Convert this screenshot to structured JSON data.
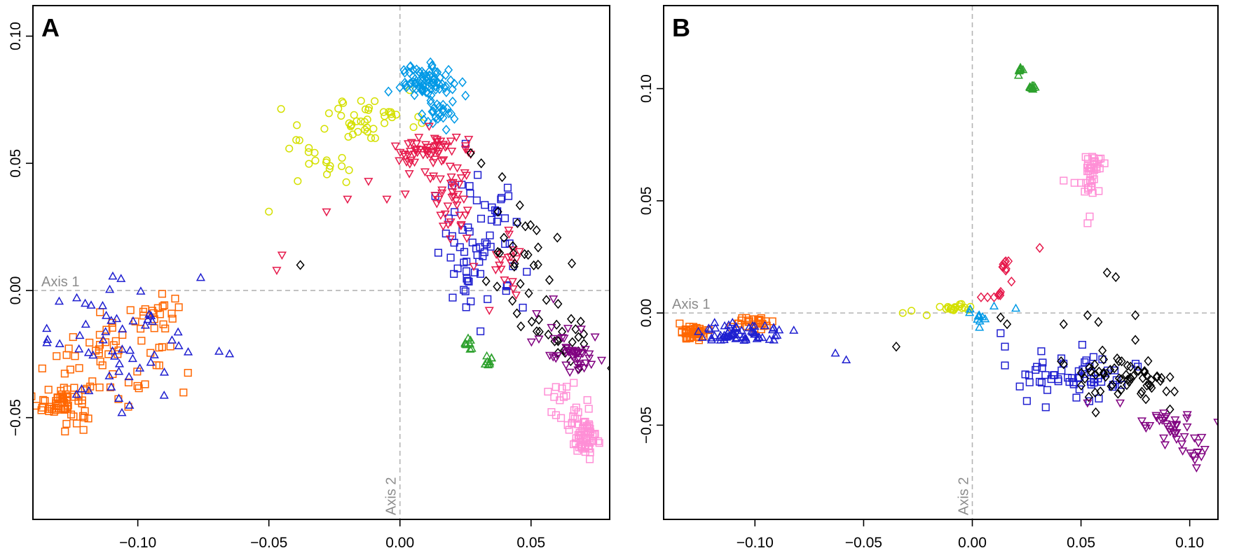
{
  "chart_data": [
    {
      "panel": "A",
      "type": "scatter",
      "xlim": [
        -0.14,
        0.08
      ],
      "ylim": [
        -0.09,
        0.112
      ],
      "x_ticks": [
        -0.1,
        -0.05,
        0.0,
        0.05
      ],
      "x_tick_labels": [
        "−0.10",
        "−0.05",
        "0.00",
        "0.05"
      ],
      "y_ticks": [
        0.1,
        0.05,
        0.0,
        -0.05
      ],
      "y_tick_labels": [
        "0.10",
        "0.05",
        "0.00",
        "−0.05"
      ],
      "axis1_label": "Axis 1",
      "axis2_label": "Axis 2",
      "groups": [
        {
          "color": "#FF6600",
          "marker": "square",
          "clusters": [
            {
              "x": -0.128,
              "y": -0.044,
              "sx": 0.005,
              "sy": 0.004,
              "n": 60
            },
            {
              "x": -0.112,
              "y": -0.024,
              "sx": 0.012,
              "sy": 0.01,
              "n": 50
            },
            {
              "x": -0.093,
              "y": -0.01,
              "sx": 0.005,
              "sy": 0.004,
              "n": 20
            }
          ]
        },
        {
          "color": "#1f1fd0",
          "marker": "triangle",
          "clusters": [
            {
              "x": -0.108,
              "y": -0.02,
              "sx": 0.013,
              "sy": 0.011,
              "n": 55
            }
          ],
          "points": [
            [
              -0.076,
              0.005
            ],
            [
              -0.069,
              -0.024
            ],
            [
              -0.065,
              -0.025
            ]
          ]
        },
        {
          "color": "#1f1fd0",
          "marker": "square",
          "clusters": [
            {
              "x": 0.03,
              "y": 0.016,
              "sx": 0.009,
              "sy": 0.014,
              "n": 70
            }
          ]
        },
        {
          "color": "#d4e000",
          "marker": "circle",
          "clusters": [
            {
              "x": -0.01,
              "y": 0.068,
              "sx": 0.008,
              "sy": 0.005,
              "n": 40
            },
            {
              "x": -0.03,
              "y": 0.055,
              "sx": 0.008,
              "sy": 0.006,
              "n": 20
            }
          ],
          "points": [
            [
              -0.05,
              0.031
            ],
            [
              -0.039,
              0.043
            ]
          ]
        },
        {
          "color": "#0099e6",
          "marker": "diamond",
          "clusters": [
            {
              "x": 0.01,
              "y": 0.082,
              "sx": 0.005,
              "sy": 0.003,
              "n": 80
            },
            {
              "x": 0.015,
              "y": 0.069,
              "sx": 0.004,
              "sy": 0.003,
              "n": 25
            }
          ]
        },
        {
          "color": "#e6194b",
          "marker": "triangle-down",
          "clusters": [
            {
              "x": 0.01,
              "y": 0.055,
              "sx": 0.006,
              "sy": 0.004,
              "n": 55
            },
            {
              "x": 0.02,
              "y": 0.04,
              "sx": 0.004,
              "sy": 0.01,
              "n": 40
            },
            {
              "x": 0.04,
              "y": 0.01,
              "sx": 0.005,
              "sy": 0.008,
              "n": 20
            }
          ],
          "points": [
            [
              -0.028,
              0.031
            ],
            [
              -0.02,
              0.036
            ],
            [
              -0.012,
              0.043
            ],
            [
              -0.045,
              0.014
            ],
            [
              -0.047,
              0.008
            ],
            [
              -0.005,
              0.036
            ],
            [
              0.002,
              0.038
            ]
          ]
        },
        {
          "color": "#000000",
          "marker": "diamond",
          "clusters": [
            {
              "x": 0.045,
              "y": 0.018,
              "sx": 0.009,
              "sy": 0.013,
              "n": 30
            },
            {
              "x": 0.063,
              "y": -0.018,
              "sx": 0.006,
              "sy": 0.006,
              "n": 25
            }
          ],
          "points": [
            [
              -0.038,
              0.01
            ],
            [
              0.027,
              0.054
            ],
            [
              0.031,
              0.05
            ]
          ]
        },
        {
          "color": "#800080",
          "marker": "triangle-down",
          "clusters": [
            {
              "x": 0.062,
              "y": -0.02,
              "sx": 0.006,
              "sy": 0.006,
              "n": 25
            },
            {
              "x": 0.069,
              "y": -0.027,
              "sx": 0.003,
              "sy": 0.003,
              "n": 20
            }
          ],
          "points": [
            [
              0.053,
              -0.019
            ]
          ]
        },
        {
          "color": "#ff8fd6",
          "marker": "square",
          "clusters": [
            {
              "x": 0.071,
              "y": -0.058,
              "sx": 0.003,
              "sy": 0.004,
              "n": 55
            },
            {
              "x": 0.065,
              "y": -0.045,
              "sx": 0.004,
              "sy": 0.007,
              "n": 25
            }
          ]
        },
        {
          "color": "#2ca02c",
          "marker": "triangle",
          "clusters": [
            {
              "x": 0.026,
              "y": -0.022,
              "sx": 0.001,
              "sy": 0.001,
              "n": 8
            },
            {
              "x": 0.034,
              "y": -0.028,
              "sx": 0.001,
              "sy": 0.001,
              "n": 8
            }
          ]
        }
      ]
    },
    {
      "panel": "B",
      "type": "scatter",
      "xlim": [
        -0.142,
        0.113
      ],
      "ylim": [
        -0.092,
        0.137
      ],
      "x_ticks": [
        -0.1,
        -0.05,
        0.0,
        0.05,
        0.1
      ],
      "x_tick_labels": [
        "−0.10",
        "−0.05",
        "0.00",
        "0.05",
        "0.10"
      ],
      "y_ticks": [
        0.1,
        0.05,
        0.0,
        -0.05
      ],
      "y_tick_labels": [
        "0.10",
        "0.05",
        "0.00",
        "−0.05"
      ],
      "axis1_label": "Axis 1",
      "axis2_label": "Axis 2",
      "groups": [
        {
          "color": "#FF6600",
          "marker": "square",
          "clusters": [
            {
              "x": -0.128,
              "y": -0.009,
              "sx": 0.003,
              "sy": 0.0015,
              "n": 45
            },
            {
              "x": -0.1,
              "y": -0.005,
              "sx": 0.004,
              "sy": 0.0015,
              "n": 25
            }
          ]
        },
        {
          "color": "#1f1fd0",
          "marker": "triangle",
          "clusters": [
            {
              "x": -0.105,
              "y": -0.009,
              "sx": 0.01,
              "sy": 0.002,
              "n": 60
            }
          ],
          "points": [
            [
              -0.063,
              -0.018
            ],
            [
              -0.058,
              -0.021
            ]
          ]
        },
        {
          "color": "#1f1fd0",
          "marker": "square",
          "clusters": [
            {
              "x": 0.045,
              "y": -0.028,
              "sx": 0.013,
              "sy": 0.006,
              "n": 60
            }
          ],
          "points": [
            [
              0.013,
              -0.009
            ],
            [
              0.015,
              -0.015
            ]
          ]
        },
        {
          "color": "#d4e000",
          "marker": "circle",
          "clusters": [
            {
              "x": -0.008,
              "y": 0.002,
              "sx": 0.004,
              "sy": 0.001,
              "n": 20
            }
          ],
          "points": [
            [
              -0.032,
              0.0
            ],
            [
              -0.028,
              0.001
            ],
            [
              -0.021,
              -0.001
            ]
          ]
        },
        {
          "color": "#0099e6",
          "marker": "triangle",
          "clusters": [
            {
              "x": 0.003,
              "y": -0.002,
              "sx": 0.002,
              "sy": 0.002,
              "n": 10
            }
          ],
          "points": [
            [
              0.01,
              0.003
            ],
            [
              0.02,
              0.002
            ]
          ]
        },
        {
          "color": "#e6194b",
          "marker": "diamond",
          "clusters": [
            {
              "x": 0.015,
              "y": 0.021,
              "sx": 0.001,
              "sy": 0.002,
              "n": 8
            },
            {
              "x": 0.013,
              "y": 0.009,
              "sx": 0.001,
              "sy": 0.001,
              "n": 5
            }
          ],
          "points": [
            [
              0.004,
              0.007
            ],
            [
              0.007,
              0.007
            ],
            [
              0.018,
              0.014
            ],
            [
              0.031,
              0.029
            ],
            [
              0.01,
              0.007
            ]
          ]
        },
        {
          "color": "#000000",
          "marker": "diamond",
          "clusters": [
            {
              "x": 0.075,
              "y": -0.03,
              "sx": 0.01,
              "sy": 0.005,
              "n": 40
            },
            {
              "x": 0.058,
              "y": -0.024,
              "sx": 0.008,
              "sy": 0.004,
              "n": 20
            }
          ],
          "points": [
            [
              -0.035,
              -0.015
            ],
            [
              0.013,
              -0.002
            ],
            [
              0.016,
              -0.005
            ],
            [
              0.042,
              -0.005
            ],
            [
              0.053,
              -0.001
            ],
            [
              0.058,
              -0.004
            ],
            [
              0.062,
              0.018
            ],
            [
              0.066,
              0.016
            ],
            [
              0.075,
              -0.012
            ],
            [
              0.075,
              -0.001
            ],
            [
              0.067,
              -0.036
            ],
            [
              0.093,
              -0.035
            ]
          ]
        },
        {
          "color": "#800080",
          "marker": "triangle-down",
          "clusters": [
            {
              "x": 0.09,
              "y": -0.051,
              "sx": 0.007,
              "sy": 0.003,
              "n": 30
            },
            {
              "x": 0.102,
              "y": -0.061,
              "sx": 0.002,
              "sy": 0.003,
              "n": 12
            }
          ],
          "points": [
            [
              0.068,
              -0.04
            ],
            [
              0.078,
              -0.048
            ],
            [
              0.053,
              -0.04
            ]
          ]
        },
        {
          "color": "#ff8fd6",
          "marker": "square",
          "clusters": [
            {
              "x": 0.056,
              "y": 0.064,
              "sx": 0.002,
              "sy": 0.004,
              "n": 25
            },
            {
              "x": 0.054,
              "y": 0.057,
              "sx": 0.002,
              "sy": 0.003,
              "n": 10
            }
          ],
          "points": [
            [
              0.05,
              0.058
            ],
            [
              0.042,
              0.059
            ],
            [
              0.054,
              0.043
            ],
            [
              0.053,
              0.04
            ],
            [
              0.047,
              0.058
            ]
          ]
        },
        {
          "color": "#2ca02c",
          "marker": "triangle",
          "clusters": [
            {
              "x": 0.022,
              "y": 0.108,
              "sx": 0.0008,
              "sy": 0.0008,
              "n": 8
            },
            {
              "x": 0.028,
              "y": 0.101,
              "sx": 0.0008,
              "sy": 0.0008,
              "n": 8
            }
          ]
        }
      ]
    }
  ]
}
